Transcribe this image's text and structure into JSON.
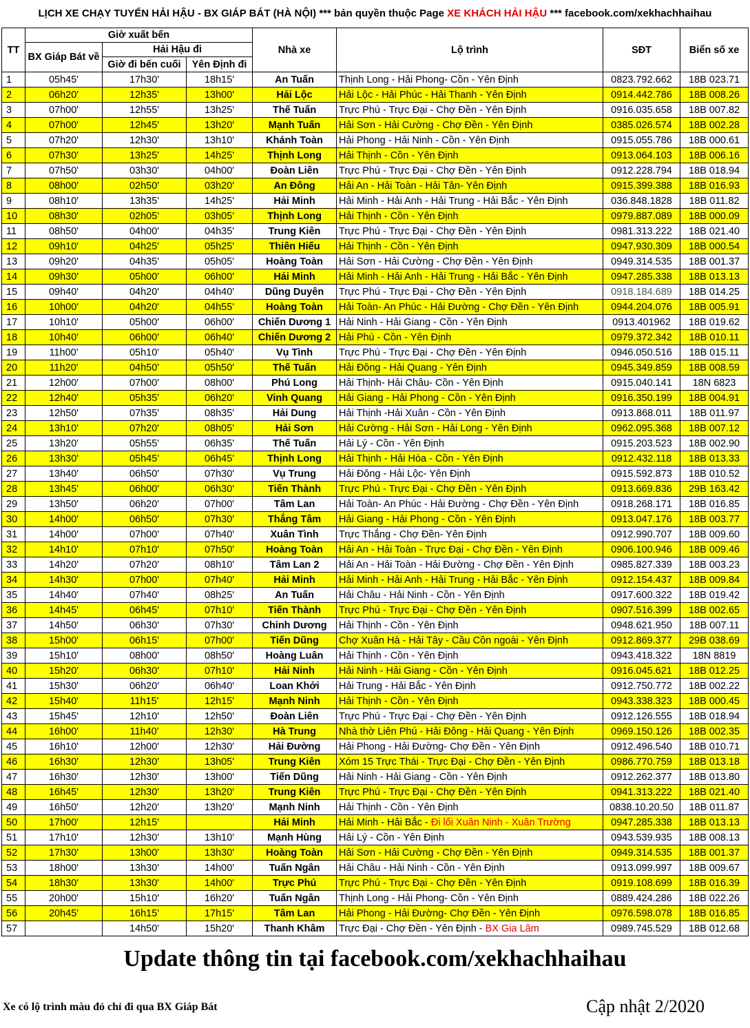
{
  "title": {
    "part1": "LỊCH XE CHẠY TUYẾN HẢI HẬU - BX GIÁP BÁT (HÀ NỘI) *** bản quyền thuộc Page ",
    "brand": "XE KHÁCH HẢI HẬU",
    "part2": " *** facebook.com/xekhachhaihau"
  },
  "headers": {
    "tt": "TT",
    "departure_group": "Giờ xuất bến",
    "giap_bat": "BX Giáp Bát về",
    "hai_hau_group": "Hải Hậu đi",
    "last_stop": "Giờ đi bến cuối",
    "yen_dinh": "Yên Định đi",
    "operator": "Nhà xe",
    "route": "Lộ trình",
    "phone": "SĐT",
    "plate": "Biển số xe"
  },
  "rows": [
    {
      "tt": "1",
      "gb": "05h45'",
      "bc": "17h30'",
      "yd": "18h15'",
      "op": "An Tuấn",
      "route": "Thịnh Long - Hải Phong- Cồn - Yên Định",
      "route_red": "",
      "phone": "0823.792.662",
      "plate": "18B 023.71",
      "hl": false
    },
    {
      "tt": "2",
      "gb": "06h20'",
      "bc": "12h35'",
      "yd": "13h00'",
      "op": "Hải Lộc",
      "route": "Hải Lộc - Hải Phúc - Hải Thanh - Yên Định",
      "route_red": "",
      "phone": "0914.442.786",
      "plate": "18B 008.26",
      "hl": true
    },
    {
      "tt": "3",
      "gb": "07h00'",
      "bc": "12h55'",
      "yd": "13h25'",
      "op": "Thế Tuấn",
      "route": "Trực Phú - Trực Đại - Chợ Đền - Yên Định",
      "route_red": "",
      "phone": "0916.035.658",
      "plate": "18B 007.82",
      "hl": false
    },
    {
      "tt": "4",
      "gb": "07h00'",
      "bc": "12h45'",
      "yd": "13h20'",
      "op": "Mạnh Tuấn",
      "route": "Hải Sơn - Hải Cường - Chợ Đền - Yên Định",
      "route_red": "",
      "phone": "0385.026.574",
      "plate": "18B 002.28",
      "hl": true
    },
    {
      "tt": "5",
      "gb": "07h20'",
      "bc": "12h30'",
      "yd": "13h10'",
      "op": "Khánh Toàn",
      "route": "Hải Phong - Hải Ninh - Cồn - Yên Định",
      "route_red": "",
      "phone": "0915.055.786",
      "plate": "18B 000.61",
      "hl": false
    },
    {
      "tt": "6",
      "gb": "07h30'",
      "bc": "13h25'",
      "yd": "14h25'",
      "op": "Thịnh Long",
      "route": "Hải Thịnh - Cồn - Yên Định",
      "route_red": "",
      "phone": "0913.064.103",
      "plate": "18B 006.16",
      "hl": true
    },
    {
      "tt": "7",
      "gb": "07h50'",
      "bc": "03h30'",
      "yd": "04h00'",
      "op": "Đoàn Liên",
      "route": "Trực Phú - Trực Đại - Chợ Đền - Yên Định",
      "route_red": "",
      "phone": "0912.228.794",
      "plate": "18B 018.94",
      "hl": false
    },
    {
      "tt": "8",
      "gb": "08h00'",
      "bc": "02h50'",
      "yd": "03h20'",
      "op": "An Đông",
      "route": "Hải An - Hải Toàn - Hải Tân- Yên Định",
      "route_red": "",
      "phone": "0915.399.388",
      "plate": "18B 016.93",
      "hl": true
    },
    {
      "tt": "9",
      "gb": "08h10'",
      "bc": "13h35'",
      "yd": "14h25'",
      "op": "Hải Minh",
      "route": "Hải Minh - Hải Anh - Hải Trung - Hải Bắc - Yên Định",
      "route_red": "",
      "phone": "036.848.1828",
      "plate": "18B 011.82",
      "hl": false
    },
    {
      "tt": "10",
      "gb": "08h30'",
      "bc": "02h05'",
      "yd": "03h05'",
      "op": "Thịnh Long",
      "route": "Hải Thịnh - Cồn - Yên Định",
      "route_red": "",
      "phone": "0979.887.089",
      "plate": "18B 000.09",
      "hl": true
    },
    {
      "tt": "11",
      "gb": "08h50'",
      "bc": "04h00'",
      "yd": "04h35'",
      "op": "Trung Kiên",
      "route": "Trực Phú - Trực Đại - Chợ Đền - Yên Định",
      "route_red": "",
      "phone": "0981.313.222",
      "plate": "18B 021.40",
      "hl": false
    },
    {
      "tt": "12",
      "gb": "09h10'",
      "bc": "04h25'",
      "yd": "05h25'",
      "op": "Thiên Hiếu",
      "route": "Hải Thịnh - Cồn - Yên Định",
      "route_red": "",
      "phone": "0947.930.309",
      "plate": "18B 000.54",
      "hl": true
    },
    {
      "tt": "13",
      "gb": "09h20'",
      "bc": "04h35'",
      "yd": "05h05'",
      "op": "Hoàng Toàn",
      "route": "Hải Sơn - Hải Cường - Chợ Đền - Yên Định",
      "route_red": "",
      "phone": "0949.314.535",
      "plate": "18B 001.37",
      "hl": false
    },
    {
      "tt": "14",
      "gb": "09h30'",
      "bc": "05h00'",
      "yd": "06h00'",
      "op": "Hải Minh",
      "route": "Hải Minh - Hải Anh - Hải Trung - Hải Bắc - Yên Định",
      "route_red": "",
      "phone": "0947.285.338",
      "plate": "18B 013.13",
      "hl": true
    },
    {
      "tt": "15",
      "gb": "09h40'",
      "bc": "04h20'",
      "yd": "04h40'",
      "op": "Dũng Duyên",
      "route": "Trực Phú - Trực Đại - Chợ Đền - Yên Định",
      "route_red": "",
      "phone": "0918.184.689",
      "plate": "18B 014.25",
      "hl": false,
      "phone_grey": true
    },
    {
      "tt": "16",
      "gb": "10h00'",
      "bc": "04h20'",
      "yd": "04h55'",
      "op": "Hoàng Toàn",
      "route": "Hải Toàn- An Phúc - Hải Đường - Chợ Đền - Yên Định",
      "route_red": "",
      "phone": "0944.204.076",
      "plate": "18B 005.91",
      "hl": true
    },
    {
      "tt": "17",
      "gb": "10h10'",
      "bc": "05h00'",
      "yd": "06h00'",
      "op": "Chiến Dương 1",
      "route": "Hải Ninh - Hải Giang - Cồn - Yên Định",
      "route_red": "",
      "phone": "0913.401962",
      "plate": "18B 019.62",
      "hl": false
    },
    {
      "tt": "18",
      "gb": "10h40'",
      "bc": "06h00'",
      "yd": "06h40'",
      "op": "Chiến Dương 2",
      "route": "Hải Phú - Cồn - Yên Định",
      "route_red": "",
      "phone": "0979.372.342",
      "plate": "18B 010.11",
      "hl": true
    },
    {
      "tt": "19",
      "gb": "11h00'",
      "bc": "05h10'",
      "yd": "05h40'",
      "op": "Vụ Tình",
      "route": "Trực Phú - Trực Đại - Chợ Đền - Yên Định",
      "route_red": "",
      "phone": "0946.050.516",
      "plate": "18B 015.11",
      "hl": false
    },
    {
      "tt": "20",
      "gb": "11h20'",
      "bc": "04h50'",
      "yd": "05h50'",
      "op": "Thế Tuấn",
      "route": "Hải Đông - Hải Quang - Yên Định",
      "route_red": "",
      "phone": "0945.349.859",
      "plate": "18B 008.59",
      "hl": true
    },
    {
      "tt": "21",
      "gb": "12h00'",
      "bc": "07h00'",
      "yd": "08h00'",
      "op": "Phú Long",
      "route": "Hải Thịnh- Hải Châu- Cồn - Yên Định",
      "route_red": "",
      "phone": "0915.040.141",
      "plate": "18N 6823",
      "hl": false
    },
    {
      "tt": "22",
      "gb": "12h40'",
      "bc": "05h35'",
      "yd": "06h20'",
      "op": "Vinh Quang",
      "route": "Hải Giang - Hải Phong - Cồn - Yên Định",
      "route_red": "",
      "phone": "0916.350.199",
      "plate": "18B 004.91",
      "hl": true
    },
    {
      "tt": "23",
      "gb": "12h50'",
      "bc": "07h35'",
      "yd": "08h35'",
      "op": "Hải Dung",
      "route": "Hải Thịnh -Hải Xuân - Cồn - Yên Định",
      "route_red": "",
      "phone": "0913.868.011",
      "plate": "18B 011.97",
      "hl": false
    },
    {
      "tt": "24",
      "gb": "13h10'",
      "bc": "07h20'",
      "yd": "08h05'",
      "op": "Hải Sơn",
      "route": "Hải Cường - Hải Sơn - Hải Long - Yên Định",
      "route_red": "",
      "phone": "0962.095.368",
      "plate": "18B 007.12",
      "hl": true
    },
    {
      "tt": "25",
      "gb": "13h20'",
      "bc": "05h55'",
      "yd": "06h35'",
      "op": "Thế Tuấn",
      "route": "Hải Lý - Cồn - Yên Định",
      "route_red": "",
      "phone": "0915.203.523",
      "plate": "18B 002.90",
      "hl": false
    },
    {
      "tt": "26",
      "gb": "13h30'",
      "bc": "05h45'",
      "yd": "06h45'",
      "op": "Thịnh Long",
      "route": "Hải Thịnh - Hải Hòa - Cồn - Yên Định",
      "route_red": "",
      "phone": "0912.432.118",
      "plate": "18B 013.33",
      "hl": true
    },
    {
      "tt": "27",
      "gb": "13h40'",
      "bc": "06h50'",
      "yd": "07h30'",
      "op": "Vụ Trung",
      "route": "Hải Đông - Hải Lộc- Yên Định",
      "route_red": "",
      "phone": "0915.592.873",
      "plate": "18B 010.52",
      "hl": false
    },
    {
      "tt": "28",
      "gb": "13h45'",
      "bc": "06h00'",
      "yd": "06h30'",
      "op": "Tiến Thành",
      "route": "Trực Phú - Trực Đại - Chợ Đền - Yên Định",
      "route_red": "",
      "phone": "0913.669.836",
      "plate": "29B 163.42",
      "hl": true
    },
    {
      "tt": "29",
      "gb": "13h50'",
      "bc": "06h20'",
      "yd": "07h00'",
      "op": "Tâm Lan",
      "route": "Hải Toàn- An Phúc - Hải Đường - Chợ Đền - Yên Định",
      "route_red": "",
      "phone": "0918.268.171",
      "plate": "18B 016.85",
      "hl": false
    },
    {
      "tt": "30",
      "gb": "14h00'",
      "bc": "06h50'",
      "yd": "07h30'",
      "op": "Thắng Tâm",
      "route": "Hải Giang - Hải Phong - Cồn - Yên Định",
      "route_red": "",
      "phone": "0913.047.176",
      "plate": "18B 003.77",
      "hl": true
    },
    {
      "tt": "31",
      "gb": "14h00'",
      "bc": "07h00'",
      "yd": "07h40'",
      "op": "Xuân Tình",
      "route": "Trực Thắng - Chợ Đền- Yên Định",
      "route_red": "",
      "phone": "0912.990.707",
      "plate": "18B 009.60",
      "hl": false
    },
    {
      "tt": "32",
      "gb": "14h10'",
      "bc": "07h10'",
      "yd": "07h50'",
      "op": "Hoàng Toàn",
      "route": "Hải An - Hải Toàn - Trực Đại - Chợ Đền - Yên Định",
      "route_red": "",
      "phone": "0906.100.946",
      "plate": "18B 009.46",
      "hl": true
    },
    {
      "tt": "33",
      "gb": "14h20'",
      "bc": "07h20'",
      "yd": "08h10'",
      "op": "Tâm Lan 2",
      "route": "Hải An - Hải Toàn - Hải Đường - Chợ Đền - Yên Định",
      "route_red": "",
      "phone": "0985.827.339",
      "plate": "18B 003.23",
      "hl": false
    },
    {
      "tt": "34",
      "gb": "14h30'",
      "bc": "07h00'",
      "yd": "07h40'",
      "op": "Hải Minh",
      "route": "Hải Minh - Hải Anh - Hải Trung - Hải Bắc - Yên Định",
      "route_red": "",
      "phone": "0912.154.437",
      "plate": "18B 009.84",
      "hl": true
    },
    {
      "tt": "35",
      "gb": "14h40'",
      "bc": "07h40'",
      "yd": "08h25'",
      "op": "An Tuấn",
      "route": "Hải Châu - Hải Ninh - Cồn - Yên Định",
      "route_red": "",
      "phone": "0917.600.322",
      "plate": "18B 019.42",
      "hl": false
    },
    {
      "tt": "36",
      "gb": "14h45'",
      "bc": "06h45'",
      "yd": "07h10'",
      "op": "Tiến Thành",
      "route": "Trực Phú - Trực Đại - Chợ Đền - Yên Định",
      "route_red": "",
      "phone": "0907.516.399",
      "plate": "18B 002.65",
      "hl": true
    },
    {
      "tt": "37",
      "gb": "14h50'",
      "bc": "06h30'",
      "yd": "07h30'",
      "op": "Chỉnh Dương",
      "route": "Hải Thịnh - Cồn - Yên Định",
      "route_red": "",
      "phone": "0948.621.950",
      "plate": "18B 007.11",
      "hl": false
    },
    {
      "tt": "38",
      "gb": "15h00'",
      "bc": "06h15'",
      "yd": "07h00'",
      "op": "Tiến Dũng",
      "route": "Chợ Xuân Hà - Hải Tây - Cầu Cồn ngoài - Yên Định",
      "route_red": "",
      "phone": "0912.869.377",
      "plate": "29B 038.69",
      "hl": true
    },
    {
      "tt": "39",
      "gb": "15h10'",
      "bc": "08h00'",
      "yd": "08h50'",
      "op": "Hoàng Luân",
      "route": "Hải Thịnh - Cồn - Yên Định",
      "route_red": "",
      "phone": "0943.418.322",
      "plate": "18N 8819",
      "hl": false
    },
    {
      "tt": "40",
      "gb": "15h20'",
      "bc": "06h30'",
      "yd": "07h10'",
      "op": "Hải Ninh",
      "route": "Hải Ninh - Hải Giang - Cồn - Yên Định",
      "route_red": "",
      "phone": "0916.045.621",
      "plate": "18B 012.25",
      "hl": true
    },
    {
      "tt": "41",
      "gb": "15h30'",
      "bc": "06h20'",
      "yd": "06h40'",
      "op": "Loan Khởi",
      "route": "Hải Trung - Hải Bắc - Yên Định",
      "route_red": "",
      "phone": "0912.750.772",
      "plate": "18B 002.22",
      "hl": false
    },
    {
      "tt": "42",
      "gb": "15h40'",
      "bc": "11h15'",
      "yd": "12h15'",
      "op": "Mạnh Ninh",
      "route": "Hải Thịnh - Cồn - Yên Định",
      "route_red": "",
      "phone": "0943.338.323",
      "plate": "18B 000.45",
      "hl": true
    },
    {
      "tt": "43",
      "gb": "15h45'",
      "bc": "12h10'",
      "yd": "12h50'",
      "op": "Đoàn Liên",
      "route": "Trực Phú - Trực Đại - Chợ Đền - Yên Định",
      "route_red": "",
      "phone": "0912.126.555",
      "plate": "18B 018.94",
      "hl": false
    },
    {
      "tt": "44",
      "gb": "16h00'",
      "bc": "11h40'",
      "yd": "12h30'",
      "op": "Hà Trung",
      "route": "Nhà thờ Liên Phú - Hải Đông - Hải Quang - Yên Định",
      "route_red": "",
      "phone": "0969.150.126",
      "plate": "18B 002.35",
      "hl": true
    },
    {
      "tt": "45",
      "gb": "16h10'",
      "bc": "12h00'",
      "yd": "12h30'",
      "op": "Hải Đường",
      "route": "Hải Phong - Hải Đường- Chợ Đền - Yên Định",
      "route_red": "",
      "phone": "0912.496.540",
      "plate": "18B 010.71",
      "hl": false
    },
    {
      "tt": "46",
      "gb": "16h30'",
      "bc": "12h30'",
      "yd": "13h05'",
      "op": "Trung Kiên",
      "route": "Xóm 15 Trực Thái - Trực Đại - Chợ Đền - Yên Định",
      "route_red": "",
      "phone": "0986.770.759",
      "plate": "18B 013.18",
      "hl": true
    },
    {
      "tt": "47",
      "gb": "16h30'",
      "bc": "12h30'",
      "yd": "13h00'",
      "op": "Tiến Dũng",
      "route": "Hải Ninh - Hải Giang - Cồn - Yên Định",
      "route_red": "",
      "phone": "0912.262.377",
      "plate": "18B 013.80",
      "hl": false
    },
    {
      "tt": "48",
      "gb": "16h45'",
      "bc": "12h30'",
      "yd": "13h20'",
      "op": "Trung Kiên",
      "route": "Trực Phú - Trực Đại - Chợ Đền - Yên Định",
      "route_red": "",
      "phone": "0941.313.222",
      "plate": "18B 021.40",
      "hl": true
    },
    {
      "tt": "49",
      "gb": "16h50'",
      "bc": "12h20'",
      "yd": "13h20'",
      "op": "Mạnh Ninh",
      "route": "Hải Thịnh - Cồn - Yên Định",
      "route_red": "",
      "phone": "0838.10.20.50",
      "plate": "18B 011.87",
      "hl": false
    },
    {
      "tt": "50",
      "gb": "17h00'",
      "bc": "12h15'",
      "yd": "",
      "op": "Hải Minh",
      "route": "Hải Minh - Hải Bắc - ",
      "route_red": "Đi lối Xuân Ninh - Xuân Trường",
      "phone": "0947.285.338",
      "plate": "18B 013.13",
      "hl": true
    },
    {
      "tt": "51",
      "gb": "17h10'",
      "bc": "12h30'",
      "yd": "13h10'",
      "op": "Mạnh Hùng",
      "route": "Hải Lý - Cồn - Yên Định",
      "route_red": "",
      "phone": "0943.539.935",
      "plate": "18B 008.13",
      "hl": false
    },
    {
      "tt": "52",
      "gb": "17h30'",
      "bc": "13h00'",
      "yd": "13h30'",
      "op": "Hoàng Toàn",
      "route": "Hải Sơn - Hải Cường - Chợ Đền - Yên Định",
      "route_red": "",
      "phone": "0949.314.535",
      "plate": "18B 001.37",
      "hl": true
    },
    {
      "tt": "53",
      "gb": "18h00'",
      "bc": "13h30'",
      "yd": "14h00'",
      "op": "Tuấn Ngân",
      "route": "Hải Châu - Hải Ninh - Cồn - Yên Định",
      "route_red": "",
      "phone": "0913.099.997",
      "plate": "18B 009.67",
      "hl": false
    },
    {
      "tt": "54",
      "gb": "18h30'",
      "bc": "13h30'",
      "yd": "14h00'",
      "op": "Trực Phú",
      "route": "Trực Phú - Trực Đại - Chợ Đền - Yên Định",
      "route_red": "",
      "phone": "0919.108.699",
      "plate": "18B 016.39",
      "hl": true
    },
    {
      "tt": "55",
      "gb": "20h00'",
      "bc": "15h10'",
      "yd": "16h20'",
      "op": "Tuấn Ngân",
      "route": "Thịnh Long - Hải Phong- Cồn - Yên Định",
      "route_red": "",
      "phone": "0889.424.286",
      "plate": "18B 022.26",
      "hl": false
    },
    {
      "tt": "56",
      "gb": "20h45'",
      "bc": "16h15'",
      "yd": "17h15'",
      "op": "Tâm Lan",
      "route": "Hải Phong - Hải Đường- Chợ Đền - Yên Định",
      "route_red": "",
      "phone": "0976.598.078",
      "plate": "18B 016.85",
      "hl": true
    },
    {
      "tt": "57",
      "gb": "",
      "bc": "14h50'",
      "yd": "15h20'",
      "op": "Thanh Khâm",
      "route": "Trực Đại - Chợ Đền - Yên Định - ",
      "route_red": "BX Gia Lâm",
      "phone": "0989.745.529",
      "plate": "18B 012.68",
      "hl": false
    }
  ],
  "footer": {
    "update": "Update thông tin tại facebook.com/xekhachhaihau",
    "note": "Xe có lộ trình màu đỏ chỉ đi qua BX Giáp Bát",
    "date": "Cập nhật 2/2020"
  },
  "colors": {
    "highlight": "#ffff00",
    "red": "#e00000"
  }
}
